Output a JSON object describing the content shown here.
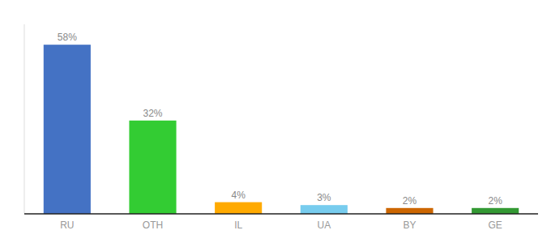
{
  "chart_data": {
    "type": "bar",
    "categories": [
      "RU",
      "OTH",
      "IL",
      "UA",
      "BY",
      "GE"
    ],
    "values": [
      58,
      32,
      4,
      3,
      2,
      2
    ],
    "value_labels": [
      "58%",
      "32%",
      "4%",
      "3%",
      "2%",
      "2%"
    ],
    "colors": [
      "#4472c4",
      "#33cc33",
      "#ffaa00",
      "#77ccee",
      "#cc6600",
      "#339933"
    ],
    "ylim": [
      0,
      65
    ],
    "grid": false,
    "data_labels": true,
    "tick_labels": "x"
  }
}
